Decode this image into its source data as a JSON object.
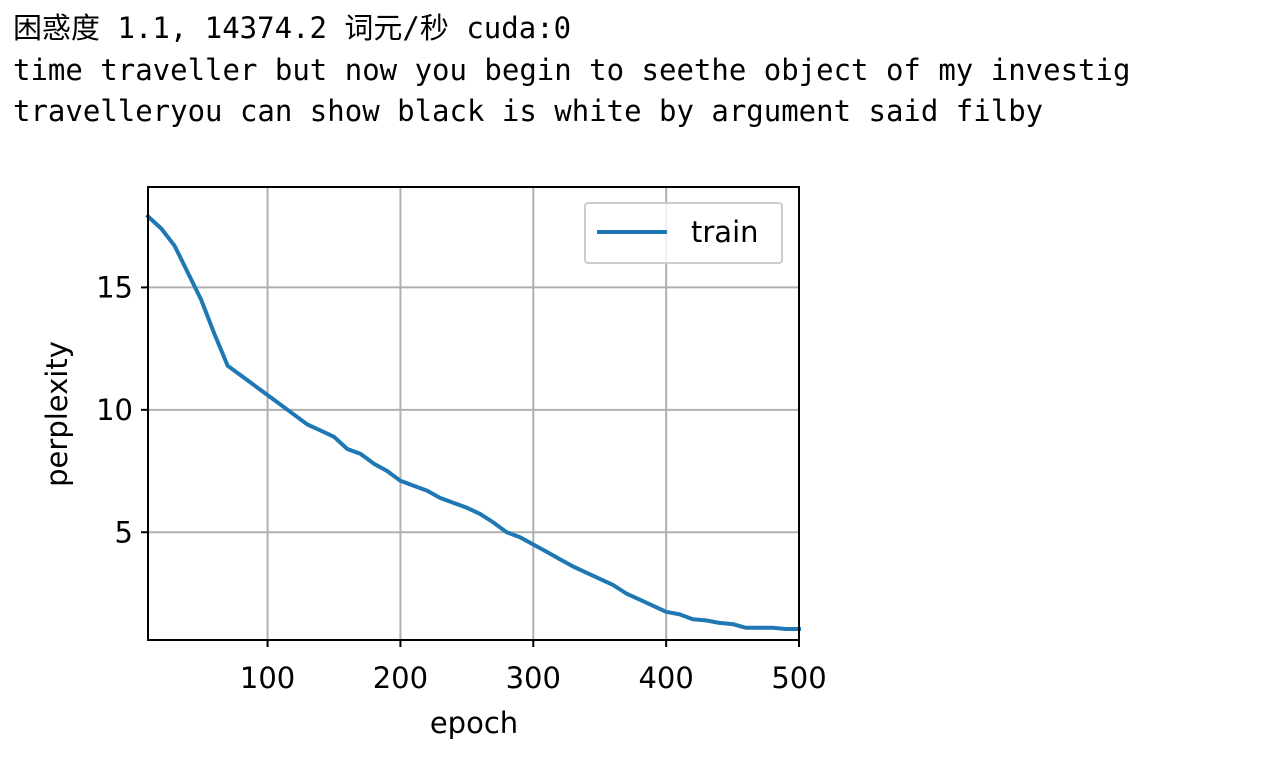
{
  "output": {
    "lines": [
      "困惑度 1.1, 14374.2 词元/秒 cuda:0",
      "time traveller but now you begin to seethe object of my investig",
      "travelleryou can show black is white by argument said filby"
    ]
  },
  "chart_data": {
    "type": "line",
    "xlabel": "epoch",
    "ylabel": "perplexity",
    "xlim": [
      10,
      500
    ],
    "ylim": [
      0.6,
      19.1
    ],
    "xticks": [
      100,
      200,
      300,
      400,
      500
    ],
    "yticks": [
      5,
      10,
      15
    ],
    "grid": true,
    "legend_position": "top-right",
    "series": [
      {
        "name": "train",
        "color": "#1f77b4",
        "x": [
          10,
          20,
          30,
          40,
          50,
          60,
          70,
          80,
          90,
          100,
          110,
          120,
          130,
          140,
          150,
          160,
          170,
          180,
          190,
          200,
          210,
          220,
          230,
          240,
          250,
          260,
          270,
          280,
          290,
          300,
          310,
          320,
          330,
          340,
          350,
          360,
          370,
          380,
          390,
          400,
          410,
          420,
          430,
          440,
          450,
          460,
          470,
          480,
          490,
          500
        ],
        "y": [
          17.9,
          17.4,
          16.7,
          15.6,
          14.5,
          13.1,
          11.8,
          11.4,
          11.0,
          10.6,
          10.2,
          9.8,
          9.4,
          9.15,
          8.9,
          8.4,
          8.2,
          7.8,
          7.5,
          7.1,
          6.9,
          6.7,
          6.4,
          6.2,
          6.0,
          5.75,
          5.4,
          5.0,
          4.8,
          4.5,
          4.2,
          3.9,
          3.6,
          3.35,
          3.1,
          2.85,
          2.5,
          2.25,
          2.0,
          1.75,
          1.65,
          1.45,
          1.4,
          1.3,
          1.25,
          1.1,
          1.1,
          1.1,
          1.05,
          1.05
        ]
      }
    ]
  }
}
